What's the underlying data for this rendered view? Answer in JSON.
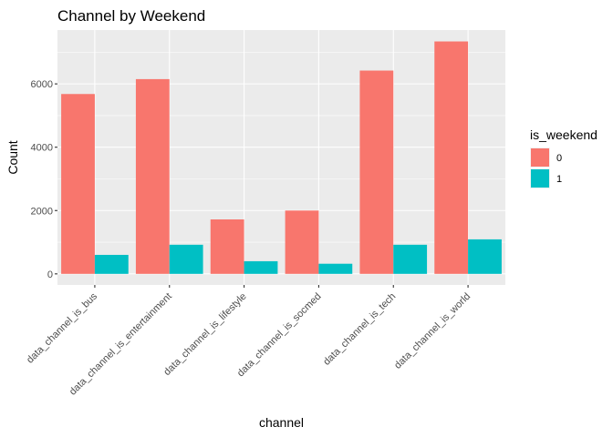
{
  "chart_data": {
    "type": "bar",
    "title": "Channel by Weekend",
    "xlabel": "channel",
    "ylabel": "Count",
    "categories": [
      "data_channel_is_bus",
      "data_channel_is_entertainment",
      "data_channel_is_lifestyle",
      "data_channel_is_socmed",
      "data_channel_is_tech",
      "data_channel_is_world"
    ],
    "series": [
      {
        "name": "0",
        "values": [
          5680,
          6150,
          1720,
          2000,
          6420,
          7340
        ],
        "color": "#F8766D"
      },
      {
        "name": "1",
        "values": [
          600,
          920,
          400,
          320,
          920,
          1090
        ],
        "color": "#00BFC4"
      }
    ],
    "ylim": [
      -350,
      7700
    ],
    "yticks": [
      0,
      2000,
      4000,
      6000
    ],
    "ytick_labels": [
      "0",
      "2000",
      "4000",
      "6000"
    ],
    "grid": true,
    "panel_background": "#EBEBEB",
    "legend": {
      "title": "is_weekend",
      "position": "right",
      "entries": [
        "0",
        "1"
      ]
    }
  }
}
